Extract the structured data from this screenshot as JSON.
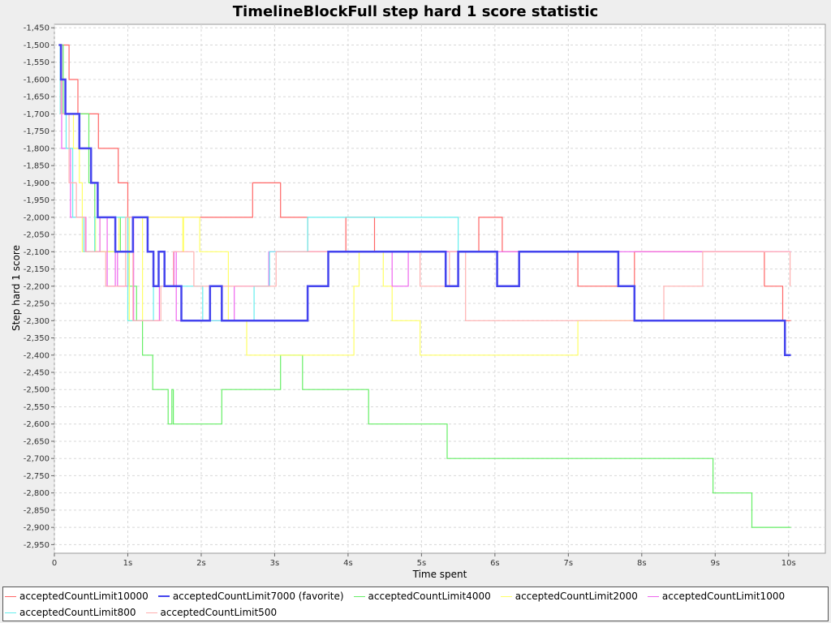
{
  "chart_data": {
    "type": "line",
    "title": "TimelineBlockFull step hard 1 score statistic",
    "xlabel": "Time spent",
    "ylabel": "Step hard 1 score",
    "xlim": [
      0,
      10.5
    ],
    "ylim": [
      -2975,
      -1440
    ],
    "x_ticks": [
      0,
      1,
      2,
      3,
      4,
      5,
      6,
      7,
      8,
      9,
      10
    ],
    "x_tick_labels": [
      "0",
      "1s",
      "2s",
      "3s",
      "4s",
      "5s",
      "6s",
      "7s",
      "8s",
      "9s",
      "10s"
    ],
    "y_ticks": [
      -1450,
      -1500,
      -1550,
      -1600,
      -1650,
      -1700,
      -1750,
      -1800,
      -1850,
      -1900,
      -1950,
      -2000,
      -2050,
      -2100,
      -2150,
      -2200,
      -2250,
      -2300,
      -2350,
      -2400,
      -2450,
      -2500,
      -2550,
      -2600,
      -2650,
      -2700,
      -2750,
      -2800,
      -2850,
      -2900,
      -2950
    ],
    "y_tick_labels": [
      "-1,450",
      "-1,500",
      "-1,550",
      "-1,600",
      "-1,650",
      "-1,700",
      "-1,750",
      "-1,800",
      "-1,850",
      "-1,900",
      "-1,950",
      "-2,000",
      "-2,050",
      "-2,100",
      "-2,150",
      "-2,200",
      "-2,250",
      "-2,300",
      "-2,350",
      "-2,400",
      "-2,450",
      "-2,500",
      "-2,550",
      "-2,600",
      "-2,650",
      "-2,700",
      "-2,750",
      "-2,800",
      "-2,850",
      "-2,900",
      "-2,950"
    ],
    "grid": true,
    "legend_position": "bottom",
    "series": [
      {
        "name": "acceptedCountLimit10000",
        "color": "#ff6666",
        "favorite": false,
        "points": [
          [
            0.06,
            -1500
          ],
          [
            0.2,
            -1500
          ],
          [
            0.2,
            -1600
          ],
          [
            0.32,
            -1600
          ],
          [
            0.32,
            -1700
          ],
          [
            0.6,
            -1700
          ],
          [
            0.6,
            -1800
          ],
          [
            0.87,
            -1800
          ],
          [
            0.87,
            -1900
          ],
          [
            1.0,
            -1900
          ],
          [
            1.0,
            -2000
          ],
          [
            2.7,
            -2000
          ],
          [
            2.7,
            -1900
          ],
          [
            3.08,
            -1900
          ],
          [
            3.08,
            -2000
          ],
          [
            3.45,
            -2000
          ],
          [
            3.45,
            -2100
          ],
          [
            3.97,
            -2100
          ],
          [
            3.97,
            -2000
          ],
          [
            4.36,
            -2000
          ],
          [
            4.36,
            -2100
          ],
          [
            5.78,
            -2100
          ],
          [
            5.78,
            -2000
          ],
          [
            6.1,
            -2000
          ],
          [
            6.1,
            -2100
          ],
          [
            7.13,
            -2100
          ],
          [
            7.13,
            -2200
          ],
          [
            7.9,
            -2200
          ],
          [
            7.9,
            -2100
          ],
          [
            9.67,
            -2100
          ],
          [
            9.67,
            -2200
          ],
          [
            9.92,
            -2200
          ],
          [
            9.92,
            -2300
          ],
          [
            10.03,
            -2300
          ]
        ]
      },
      {
        "name": "acceptedCountLimit7000 (favorite)",
        "color": "#4444ee",
        "favorite": true,
        "points": [
          [
            0.06,
            -1500
          ],
          [
            0.09,
            -1500
          ],
          [
            0.09,
            -1600
          ],
          [
            0.15,
            -1600
          ],
          [
            0.15,
            -1700
          ],
          [
            0.34,
            -1700
          ],
          [
            0.34,
            -1800
          ],
          [
            0.5,
            -1800
          ],
          [
            0.5,
            -1900
          ],
          [
            0.59,
            -1900
          ],
          [
            0.59,
            -2000
          ],
          [
            0.83,
            -2000
          ],
          [
            0.83,
            -2100
          ],
          [
            1.07,
            -2100
          ],
          [
            1.07,
            -2000
          ],
          [
            1.27,
            -2000
          ],
          [
            1.27,
            -2100
          ],
          [
            1.35,
            -2100
          ],
          [
            1.35,
            -2200
          ],
          [
            1.42,
            -2200
          ],
          [
            1.42,
            -2100
          ],
          [
            1.5,
            -2100
          ],
          [
            1.5,
            -2200
          ],
          [
            1.73,
            -2200
          ],
          [
            1.73,
            -2300
          ],
          [
            2.12,
            -2300
          ],
          [
            2.12,
            -2200
          ],
          [
            2.28,
            -2200
          ],
          [
            2.28,
            -2300
          ],
          [
            3.45,
            -2300
          ],
          [
            3.45,
            -2200
          ],
          [
            3.73,
            -2200
          ],
          [
            3.73,
            -2100
          ],
          [
            5.33,
            -2100
          ],
          [
            5.33,
            -2200
          ],
          [
            5.5,
            -2200
          ],
          [
            5.5,
            -2100
          ],
          [
            6.03,
            -2100
          ],
          [
            6.03,
            -2200
          ],
          [
            6.33,
            -2200
          ],
          [
            6.33,
            -2100
          ],
          [
            7.68,
            -2100
          ],
          [
            7.68,
            -2200
          ],
          [
            7.9,
            -2200
          ],
          [
            7.9,
            -2300
          ],
          [
            9.95,
            -2300
          ],
          [
            9.95,
            -2400
          ],
          [
            10.03,
            -2400
          ]
        ]
      },
      {
        "name": "acceptedCountLimit4000",
        "color": "#66ee66",
        "favorite": false,
        "points": [
          [
            0.06,
            -1500
          ],
          [
            0.12,
            -1500
          ],
          [
            0.12,
            -1700
          ],
          [
            0.47,
            -1700
          ],
          [
            0.47,
            -1900
          ],
          [
            0.55,
            -1900
          ],
          [
            0.55,
            -2100
          ],
          [
            0.9,
            -2100
          ],
          [
            0.9,
            -2000
          ],
          [
            1.0,
            -2000
          ],
          [
            1.0,
            -2100
          ],
          [
            1.02,
            -2100
          ],
          [
            1.02,
            -2200
          ],
          [
            1.12,
            -2200
          ],
          [
            1.12,
            -2300
          ],
          [
            1.2,
            -2300
          ],
          [
            1.2,
            -2400
          ],
          [
            1.34,
            -2400
          ],
          [
            1.34,
            -2500
          ],
          [
            1.55,
            -2500
          ],
          [
            1.55,
            -2600
          ],
          [
            1.6,
            -2600
          ],
          [
            1.6,
            -2500
          ],
          [
            1.62,
            -2500
          ],
          [
            1.62,
            -2600
          ],
          [
            2.28,
            -2600
          ],
          [
            2.28,
            -2500
          ],
          [
            3.08,
            -2500
          ],
          [
            3.08,
            -2400
          ],
          [
            3.38,
            -2400
          ],
          [
            3.38,
            -2500
          ],
          [
            4.28,
            -2500
          ],
          [
            4.28,
            -2600
          ],
          [
            5.35,
            -2600
          ],
          [
            5.35,
            -2700
          ],
          [
            8.97,
            -2700
          ],
          [
            8.97,
            -2800
          ],
          [
            9.5,
            -2800
          ],
          [
            9.5,
            -2900
          ],
          [
            10.03,
            -2900
          ]
        ]
      },
      {
        "name": "acceptedCountLimit2000",
        "color": "#ffff66",
        "favorite": false,
        "points": [
          [
            0.06,
            -1500
          ],
          [
            0.1,
            -1500
          ],
          [
            0.1,
            -1700
          ],
          [
            0.26,
            -1700
          ],
          [
            0.26,
            -1800
          ],
          [
            0.34,
            -1800
          ],
          [
            0.34,
            -1900
          ],
          [
            0.38,
            -1900
          ],
          [
            0.38,
            -2100
          ],
          [
            0.56,
            -2100
          ],
          [
            0.56,
            -2000
          ],
          [
            0.62,
            -2000
          ],
          [
            0.62,
            -2100
          ],
          [
            0.88,
            -2100
          ],
          [
            0.88,
            -2000
          ],
          [
            1.02,
            -2000
          ],
          [
            1.02,
            -2300
          ],
          [
            1.2,
            -2300
          ],
          [
            1.2,
            -2000
          ],
          [
            1.75,
            -2000
          ],
          [
            1.75,
            -2100
          ],
          [
            1.76,
            -2100
          ],
          [
            1.76,
            -2000
          ],
          [
            1.98,
            -2000
          ],
          [
            1.98,
            -2100
          ],
          [
            2.37,
            -2100
          ],
          [
            2.37,
            -2300
          ],
          [
            2.62,
            -2300
          ],
          [
            2.62,
            -2400
          ],
          [
            4.08,
            -2400
          ],
          [
            4.08,
            -2200
          ],
          [
            4.15,
            -2200
          ],
          [
            4.15,
            -2100
          ],
          [
            4.48,
            -2100
          ],
          [
            4.48,
            -2200
          ],
          [
            4.6,
            -2200
          ],
          [
            4.6,
            -2300
          ],
          [
            4.98,
            -2300
          ],
          [
            4.98,
            -2400
          ],
          [
            7.13,
            -2400
          ],
          [
            7.13,
            -2300
          ],
          [
            8.0,
            -2300
          ]
        ]
      },
      {
        "name": "acceptedCountLimit1000",
        "color": "#ee66ee",
        "favorite": false,
        "points": [
          [
            0.06,
            -1500
          ],
          [
            0.1,
            -1500
          ],
          [
            0.1,
            -1800
          ],
          [
            0.22,
            -1800
          ],
          [
            0.22,
            -2000
          ],
          [
            0.43,
            -2000
          ],
          [
            0.43,
            -2100
          ],
          [
            0.62,
            -2100
          ],
          [
            0.62,
            -2000
          ],
          [
            0.72,
            -2000
          ],
          [
            0.72,
            -2200
          ],
          [
            0.83,
            -2200
          ],
          [
            0.83,
            -2100
          ],
          [
            0.86,
            -2100
          ],
          [
            0.86,
            -2200
          ],
          [
            1.0,
            -2200
          ],
          [
            1.0,
            -2000
          ],
          [
            1.08,
            -2000
          ],
          [
            1.08,
            -2300
          ],
          [
            1.43,
            -2300
          ],
          [
            1.43,
            -2200
          ],
          [
            1.63,
            -2200
          ],
          [
            1.63,
            -2100
          ],
          [
            1.66,
            -2100
          ],
          [
            1.66,
            -2300
          ],
          [
            2.45,
            -2300
          ],
          [
            2.45,
            -2200
          ],
          [
            2.92,
            -2200
          ],
          [
            2.92,
            -2100
          ],
          [
            4.6,
            -2100
          ],
          [
            4.6,
            -2200
          ],
          [
            4.82,
            -2200
          ],
          [
            4.82,
            -2100
          ],
          [
            9.67,
            -2100
          ],
          [
            9.67,
            -2100
          ],
          [
            10.03,
            -2100
          ]
        ]
      },
      {
        "name": "acceptedCountLimit800",
        "color": "#66eeee",
        "favorite": false,
        "points": [
          [
            0.06,
            -1500
          ],
          [
            0.08,
            -1500
          ],
          [
            0.08,
            -1700
          ],
          [
            0.16,
            -1700
          ],
          [
            0.16,
            -1800
          ],
          [
            0.25,
            -1800
          ],
          [
            0.25,
            -2000
          ],
          [
            0.4,
            -2000
          ],
          [
            0.4,
            -2100
          ],
          [
            0.55,
            -2100
          ],
          [
            0.55,
            -2000
          ],
          [
            1.0,
            -2000
          ],
          [
            1.0,
            -2300
          ],
          [
            1.35,
            -2300
          ],
          [
            1.35,
            -2200
          ],
          [
            2.02,
            -2200
          ],
          [
            2.02,
            -2300
          ],
          [
            2.72,
            -2300
          ],
          [
            2.72,
            -2200
          ],
          [
            2.93,
            -2200
          ],
          [
            2.93,
            -2100
          ],
          [
            3.45,
            -2100
          ],
          [
            3.45,
            -2000
          ],
          [
            5.5,
            -2000
          ],
          [
            5.5,
            -2100
          ],
          [
            6.0,
            -2100
          ]
        ]
      },
      {
        "name": "acceptedCountLimit500",
        "color": "#ffb0b0",
        "favorite": false,
        "points": [
          [
            0.06,
            -1500
          ],
          [
            0.09,
            -1500
          ],
          [
            0.09,
            -1700
          ],
          [
            0.2,
            -1700
          ],
          [
            0.2,
            -1900
          ],
          [
            0.3,
            -1900
          ],
          [
            0.3,
            -2000
          ],
          [
            0.42,
            -2000
          ],
          [
            0.42,
            -2100
          ],
          [
            0.7,
            -2100
          ],
          [
            0.7,
            -2200
          ],
          [
            0.97,
            -2200
          ],
          [
            0.97,
            -2000
          ],
          [
            1.07,
            -2000
          ],
          [
            1.07,
            -2300
          ],
          [
            1.45,
            -2300
          ],
          [
            1.45,
            -2200
          ],
          [
            1.62,
            -2200
          ],
          [
            1.62,
            -2100
          ],
          [
            1.9,
            -2100
          ],
          [
            1.9,
            -2200
          ],
          [
            2.6,
            -2200
          ],
          [
            2.6,
            -2200
          ],
          [
            3.02,
            -2200
          ],
          [
            3.02,
            -2100
          ],
          [
            4.98,
            -2100
          ],
          [
            4.98,
            -2200
          ],
          [
            5.38,
            -2200
          ],
          [
            5.38,
            -2100
          ],
          [
            5.6,
            -2100
          ],
          [
            5.6,
            -2300
          ],
          [
            8.3,
            -2300
          ],
          [
            8.3,
            -2200
          ],
          [
            8.83,
            -2200
          ],
          [
            8.83,
            -2100
          ],
          [
            10.02,
            -2100
          ],
          [
            10.02,
            -2200
          ]
        ]
      }
    ]
  }
}
